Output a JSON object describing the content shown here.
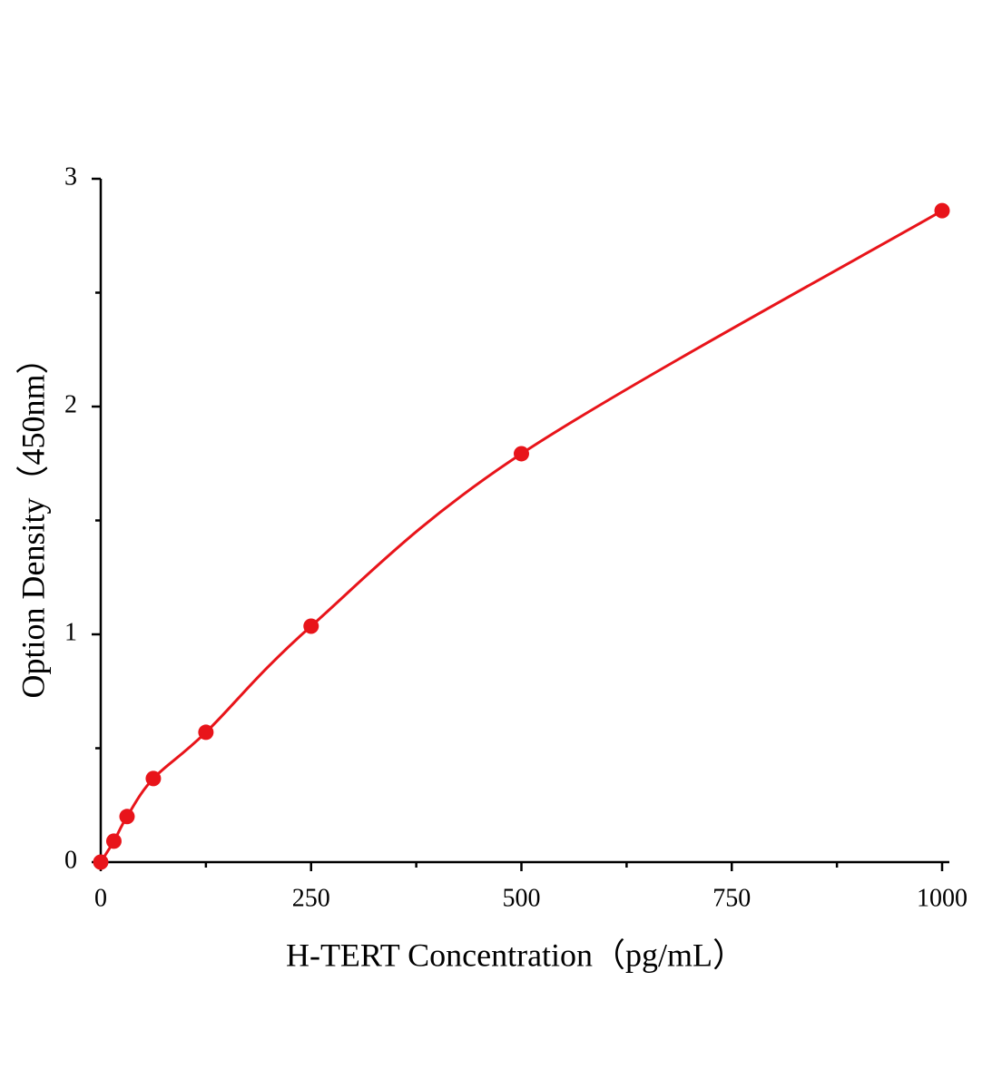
{
  "chart_data": {
    "type": "scatter",
    "x_label": "H-TERT Concentration（pg/mL）",
    "y_label": "Option Density（450nm）",
    "xlim": [
      0,
      1000
    ],
    "ylim": [
      0,
      3
    ],
    "xticks": [
      0,
      250,
      500,
      750,
      1000
    ],
    "yticks": [
      0,
      1,
      2,
      3
    ],
    "minor_xticks": [
      125,
      375,
      625,
      875
    ],
    "minor_yticks": [
      0.5,
      1.5,
      2.5
    ],
    "grid": false,
    "series": [
      {
        "color": "#e8141a",
        "line": true,
        "smooth": true,
        "x": [
          0,
          15.6,
          31.25,
          62.5,
          125,
          250,
          500,
          1000
        ],
        "values": [
          0,
          0.092,
          0.2,
          0.367,
          0.57,
          1.036,
          1.793,
          2.86
        ]
      }
    ]
  }
}
